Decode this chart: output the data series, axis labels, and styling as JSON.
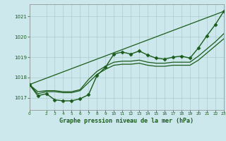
{
  "background_color": "#cce8ec",
  "grid_color": "#aacccc",
  "line_color": "#1a5c1a",
  "title": "Graphe pression niveau de la mer (hPa)",
  "xlim": [
    0,
    23
  ],
  "ylim": [
    1016.4,
    1021.6
  ],
  "yticks": [
    1017,
    1018,
    1019,
    1020,
    1021
  ],
  "xticks": [
    0,
    2,
    3,
    4,
    5,
    6,
    7,
    8,
    9,
    10,
    11,
    12,
    13,
    14,
    15,
    16,
    17,
    18,
    19,
    20,
    21,
    22,
    23
  ],
  "series": [
    {
      "x": [
        0,
        1,
        2,
        3,
        4,
        5,
        6,
        7,
        8,
        9,
        10,
        11,
        12,
        13,
        14,
        15,
        16,
        17,
        18,
        19,
        20,
        21,
        22,
        23
      ],
      "y": [
        1017.65,
        1017.1,
        1017.2,
        1016.9,
        1016.85,
        1016.85,
        1016.95,
        1017.15,
        1018.1,
        1018.5,
        1019.15,
        1019.25,
        1019.15,
        1019.3,
        1019.1,
        1018.95,
        1018.9,
        1019.0,
        1019.05,
        1018.95,
        1019.45,
        1020.05,
        1020.6,
        1021.25
      ],
      "marker": "D",
      "markersize": 2.5,
      "linewidth": 1.0,
      "zorder": 5
    },
    {
      "x": [
        0,
        23
      ],
      "y": [
        1017.65,
        1021.25
      ],
      "marker": null,
      "markersize": 0,
      "linewidth": 0.9,
      "zorder": 2
    },
    {
      "x": [
        0,
        1,
        2,
        3,
        4,
        5,
        6,
        7,
        8,
        9,
        10,
        11,
        12,
        13,
        14,
        15,
        16,
        17,
        18,
        19,
        20,
        21,
        22,
        23
      ],
      "y": [
        1017.65,
        1017.3,
        1017.35,
        1017.35,
        1017.3,
        1017.3,
        1017.4,
        1017.9,
        1018.3,
        1018.55,
        1018.75,
        1018.8,
        1018.8,
        1018.85,
        1018.75,
        1018.7,
        1018.7,
        1018.75,
        1018.75,
        1018.75,
        1019.05,
        1019.4,
        1019.75,
        1020.15
      ],
      "marker": null,
      "markersize": 0,
      "linewidth": 0.9,
      "zorder": 3
    },
    {
      "x": [
        0,
        1,
        2,
        3,
        4,
        5,
        6,
        7,
        8,
        9,
        10,
        11,
        12,
        13,
        14,
        15,
        16,
        17,
        18,
        19,
        20,
        21,
        22,
        23
      ],
      "y": [
        1017.65,
        1017.2,
        1017.3,
        1017.3,
        1017.25,
        1017.25,
        1017.35,
        1017.75,
        1018.15,
        1018.4,
        1018.6,
        1018.65,
        1018.65,
        1018.7,
        1018.6,
        1018.55,
        1018.55,
        1018.6,
        1018.6,
        1018.6,
        1018.85,
        1019.2,
        1019.55,
        1019.9
      ],
      "marker": null,
      "markersize": 0,
      "linewidth": 0.9,
      "zorder": 3
    }
  ]
}
